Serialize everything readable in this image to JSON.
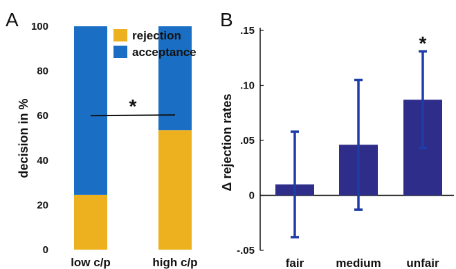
{
  "chart_data": [
    {
      "panel_label": "A",
      "type": "bar",
      "stacked": true,
      "categories": [
        "low c/p",
        "high c/p"
      ],
      "series": [
        {
          "name": "rejection",
          "values": [
            24.5,
            53.5
          ],
          "color": "#EDB120"
        },
        {
          "name": "acceptance",
          "values": [
            75.5,
            46.5
          ],
          "color": "#1A6FC4"
        }
      ],
      "ylabel": "decision in %",
      "ylim": [
        0,
        100
      ],
      "yticks": [
        "0",
        "20",
        "40",
        "60",
        "80",
        "100"
      ],
      "yticks_values": [
        0,
        20,
        40,
        60,
        80,
        100
      ],
      "significance_line_value": 60,
      "significance_marker": "*",
      "legend_position": "top-right",
      "grid": false
    },
    {
      "panel_label": "B",
      "type": "bar",
      "categories": [
        "fair",
        "medium",
        "unfair"
      ],
      "values": [
        0.01,
        0.046,
        0.087
      ],
      "error_low": [
        -0.038,
        -0.013,
        0.043
      ],
      "error_high": [
        0.058,
        0.105,
        0.131
      ],
      "bar_color": "#2E2D8A",
      "error_color": "#1F3DA6",
      "ylabel": "Δ rejection rates",
      "ylim": [
        -0.05,
        0.15
      ],
      "yticks": [
        "-.05",
        "0",
        ".05",
        ".10",
        ".15"
      ],
      "yticks_values": [
        -0.05,
        0,
        0.05,
        0.1,
        0.15
      ],
      "significance_markers": [
        "",
        "",
        "*"
      ],
      "grid": false
    }
  ]
}
